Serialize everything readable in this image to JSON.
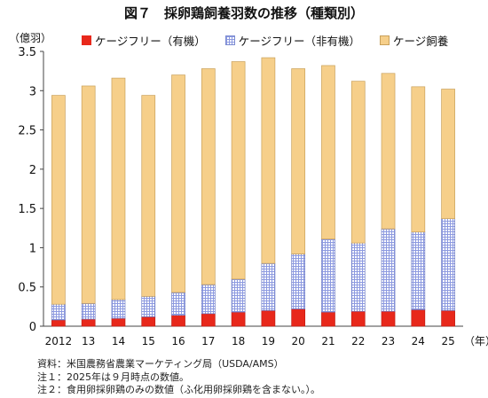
{
  "header": {
    "title": "図７　採卵鶏飼養羽数の推移（種類別）"
  },
  "chart_data": {
    "type": "bar",
    "stacked": true,
    "ylabel": "（億羽）",
    "xlabel": "（年）",
    "ylim": [
      0,
      3.5
    ],
    "yticks": [
      0,
      0.5,
      1,
      1.5,
      2,
      2.5,
      3,
      3.5
    ],
    "ytick_labels": [
      "0",
      "0.5",
      "1",
      "1.5",
      "2",
      "2.5",
      "3",
      "3.5"
    ],
    "categories": [
      "2012",
      "13",
      "14",
      "15",
      "16",
      "17",
      "18",
      "19",
      "20",
      "21",
      "22",
      "23",
      "24",
      "25"
    ],
    "legend_position": "top",
    "grid": false,
    "series": [
      {
        "name": "ケージフリー（有機）",
        "color": "#e8281b",
        "values": [
          0.08,
          0.09,
          0.1,
          0.12,
          0.14,
          0.16,
          0.18,
          0.2,
          0.22,
          0.18,
          0.19,
          0.19,
          0.21,
          0.2
        ]
      },
      {
        "name": "ケージフリー（非有機）",
        "color": "#8d9ae0",
        "values": [
          0.2,
          0.2,
          0.24,
          0.26,
          0.29,
          0.37,
          0.42,
          0.6,
          0.7,
          0.93,
          0.87,
          1.05,
          0.99,
          1.17
        ]
      },
      {
        "name": "ケージ飼養",
        "color": "#f6cf8a",
        "values": [
          2.66,
          2.77,
          2.82,
          2.56,
          2.77,
          2.75,
          2.77,
          2.62,
          2.36,
          2.21,
          2.06,
          1.98,
          1.85,
          1.65
        ]
      }
    ]
  },
  "notes": [
    "資料：米国農務省農業マーケティング局（USDA/AMS）",
    "注１：2025年は９月時点の数値。",
    "注２：食用卵採卵鶏のみの数値（ふ化用卵採卵鶏を含まない。）。"
  ]
}
